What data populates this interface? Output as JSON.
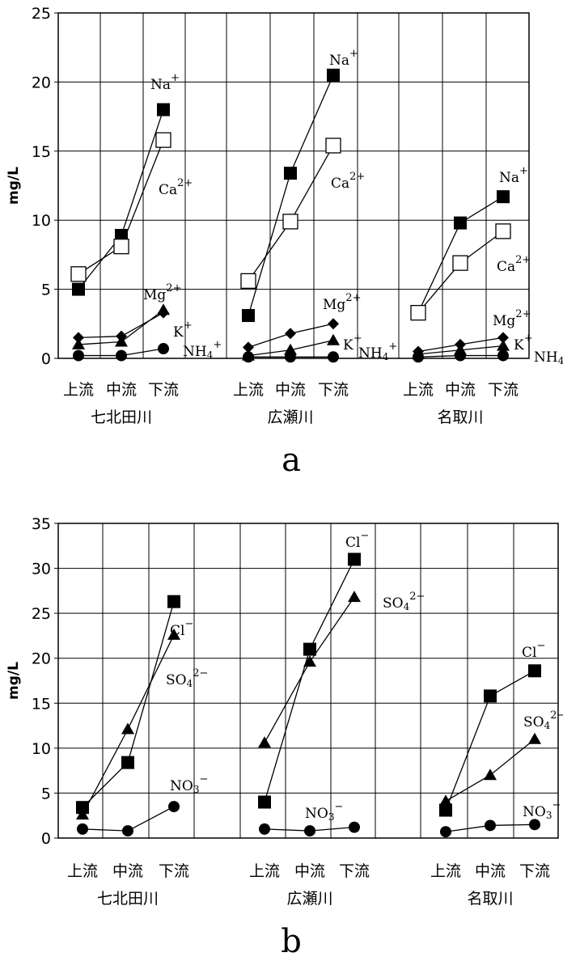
{
  "chart_data": [
    {
      "type": "line",
      "panel_label": "a",
      "ylabel": "mg/L",
      "ylim": [
        0,
        25
      ],
      "yticks": [
        0,
        5,
        10,
        15,
        20,
        25
      ],
      "grid": true,
      "groups": [
        {
          "river": "七北田川",
          "categories": [
            "上流",
            "中流",
            "下流"
          ]
        },
        {
          "river": "広瀬川",
          "categories": [
            "上流",
            "中流",
            "下流"
          ]
        },
        {
          "river": "名取川",
          "categories": [
            "上流",
            "中流",
            "下流"
          ]
        }
      ],
      "series": [
        {
          "name": "Na",
          "charge": "+",
          "marker": "filled-square",
          "values": [
            [
              5.0,
              8.9,
              18.0
            ],
            [
              3.1,
              13.4,
              20.5
            ],
            [
              3.3,
              9.8,
              11.7
            ]
          ]
        },
        {
          "name": "Ca",
          "charge": "2+",
          "marker": "open-square",
          "values": [
            [
              6.1,
              8.1,
              15.8
            ],
            [
              5.6,
              9.9,
              15.4
            ],
            [
              3.3,
              6.9,
              9.2
            ]
          ]
        },
        {
          "name": "Mg",
          "charge": "2+",
          "marker": "diamond",
          "values": [
            [
              1.5,
              1.6,
              3.3
            ],
            [
              0.8,
              1.8,
              2.5
            ],
            [
              0.5,
              1.0,
              1.5
            ]
          ]
        },
        {
          "name": "K",
          "charge": "+",
          "marker": "triangle",
          "values": [
            [
              1.0,
              1.2,
              3.5
            ],
            [
              0.2,
              0.6,
              1.3
            ],
            [
              0.3,
              0.6,
              0.9
            ]
          ]
        },
        {
          "name": "NH4",
          "charge": "+",
          "marker": "circle",
          "values": [
            [
              0.2,
              0.2,
              0.7
            ],
            [
              0.1,
              0.1,
              0.1
            ],
            [
              0.1,
              0.2,
              0.2
            ]
          ]
        }
      ]
    },
    {
      "type": "line",
      "panel_label": "b",
      "ylabel": "mg/L",
      "ylim": [
        0,
        35
      ],
      "yticks": [
        0,
        5,
        10,
        15,
        20,
        25,
        30,
        35
      ],
      "grid": true,
      "groups": [
        {
          "river": "七北田川",
          "categories": [
            "上流",
            "中流",
            "下流"
          ]
        },
        {
          "river": "広瀬川",
          "categories": [
            "上流",
            "中流",
            "下流"
          ]
        },
        {
          "river": "名取川",
          "categories": [
            "上流",
            "中流",
            "下流"
          ]
        }
      ],
      "series": [
        {
          "name": "Cl",
          "charge": "−",
          "marker": "filled-square",
          "values": [
            [
              3.4,
              8.4,
              26.3
            ],
            [
              4.0,
              21.0,
              31.0
            ],
            [
              3.1,
              15.8,
              18.6
            ]
          ]
        },
        {
          "name": "SO4",
          "charge": "2−",
          "marker": "triangle",
          "values": [
            [
              2.6,
              12.1,
              22.6
            ],
            [
              10.6,
              19.6,
              26.8
            ],
            [
              4.1,
              7.0,
              11.0
            ]
          ]
        },
        {
          "name": "NO3",
          "charge": "−",
          "marker": "circle",
          "values": [
            [
              1.0,
              0.8,
              3.5
            ],
            [
              1.0,
              0.8,
              1.2
            ],
            [
              0.7,
              1.4,
              1.5
            ]
          ]
        }
      ]
    }
  ]
}
